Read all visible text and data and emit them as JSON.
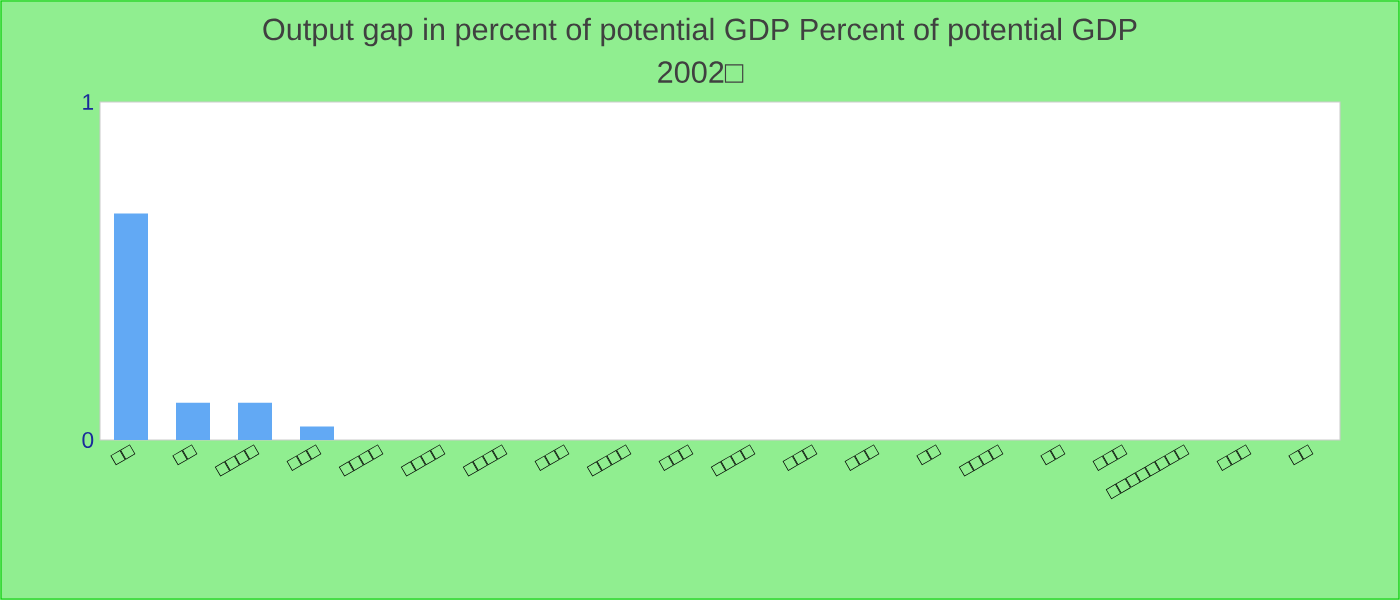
{
  "chart_data": {
    "type": "bar",
    "title": "Output gap in percent of potential GDP  Percent of potential GDP",
    "subtitle": "2002□",
    "categories": [
      "□□",
      "□□",
      "□□□□",
      "□□□",
      "□□□□",
      "□□□□",
      "□□□□",
      "□□□",
      "□□□□",
      "□□□",
      "□□□□",
      "□□□",
      "□□□",
      "□□",
      "□□□□",
      "□□",
      "□□□",
      "□□□□□□□□",
      "□□□",
      "□□"
    ],
    "values": [
      0.67,
      0.11,
      0.11,
      0.04,
      0,
      0,
      0,
      0,
      0,
      0,
      0,
      0,
      0,
      0,
      0,
      0,
      0,
      0,
      0,
      0
    ],
    "color": "#62a9f4",
    "ylim": [
      0,
      1
    ],
    "yticks": [
      0,
      1
    ]
  }
}
